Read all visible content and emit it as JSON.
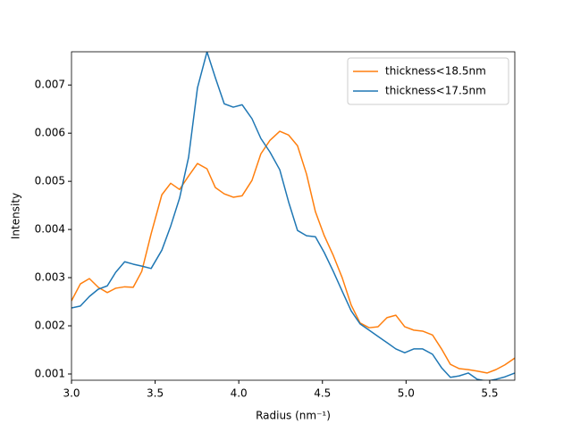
{
  "chart_data": {
    "type": "line",
    "xlabel": "Radius (nm⁻¹)",
    "ylabel": "Intensity",
    "x": [
      3.0,
      3.053,
      3.107,
      3.16,
      3.214,
      3.264,
      3.318,
      3.369,
      3.42,
      3.476,
      3.54,
      3.593,
      3.646,
      3.7,
      3.753,
      3.81,
      3.86,
      3.913,
      3.967,
      4.02,
      4.079,
      4.132,
      4.186,
      4.245,
      4.298,
      4.351,
      4.405,
      4.458,
      4.511,
      4.565,
      4.618,
      4.672,
      4.725,
      4.779,
      4.832,
      4.886,
      4.939,
      4.992,
      5.046,
      5.099,
      5.158,
      5.212,
      5.265,
      5.318,
      5.372,
      5.425,
      5.484,
      5.537,
      5.591,
      5.65
    ],
    "series": [
      {
        "name": "thickness<18.5nm",
        "color": "#ff7f0e",
        "values": [
          0.00252,
          0.00287,
          0.00298,
          0.0028,
          0.00269,
          0.00278,
          0.00281,
          0.0028,
          0.00313,
          0.00391,
          0.00472,
          0.00496,
          0.00483,
          0.00511,
          0.00537,
          0.00526,
          0.00487,
          0.00474,
          0.00467,
          0.0047,
          0.00502,
          0.00557,
          0.00585,
          0.00604,
          0.00596,
          0.00574,
          0.00515,
          0.00437,
          0.00387,
          0.00346,
          0.003,
          0.00243,
          0.00206,
          0.00196,
          0.00198,
          0.00217,
          0.00222,
          0.00198,
          0.00191,
          0.00189,
          0.00181,
          0.00152,
          0.0012,
          0.00111,
          0.00109,
          0.00106,
          0.00102,
          0.00109,
          0.00119,
          0.00133
        ]
      },
      {
        "name": "thickness<17.5nm",
        "color": "#1f77b4",
        "values": [
          0.00237,
          0.00241,
          0.00261,
          0.00276,
          0.00283,
          0.00311,
          0.00333,
          0.00328,
          0.00324,
          0.00319,
          0.00357,
          0.00407,
          0.00465,
          0.0055,
          0.00694,
          0.00769,
          0.00715,
          0.00661,
          0.00654,
          0.00659,
          0.0063,
          0.00589,
          0.00561,
          0.00524,
          0.00457,
          0.00398,
          0.00387,
          0.00385,
          0.00352,
          0.00313,
          0.00272,
          0.00231,
          0.00204,
          0.00191,
          0.00178,
          0.00165,
          0.00152,
          0.00144,
          0.00152,
          0.00152,
          0.00141,
          0.00113,
          0.00093,
          0.00096,
          0.00102,
          0.00089,
          0.00085,
          0.00089,
          0.00094,
          0.00102
        ]
      }
    ],
    "xlim": [
      3.0,
      5.65
    ],
    "ylim": [
      0.00087,
      0.00769
    ],
    "xticks": [
      {
        "value": 3,
        "label": "3.0"
      },
      3.5,
      {
        "value": 4,
        "label": "4.0"
      },
      4.5,
      {
        "value": 5,
        "label": "5.0"
      },
      5.5
    ],
    "yticks": [
      0.001,
      0.002,
      0.003,
      0.004,
      0.005,
      0.006,
      0.007
    ],
    "legend": "upper right",
    "grid": false
  }
}
